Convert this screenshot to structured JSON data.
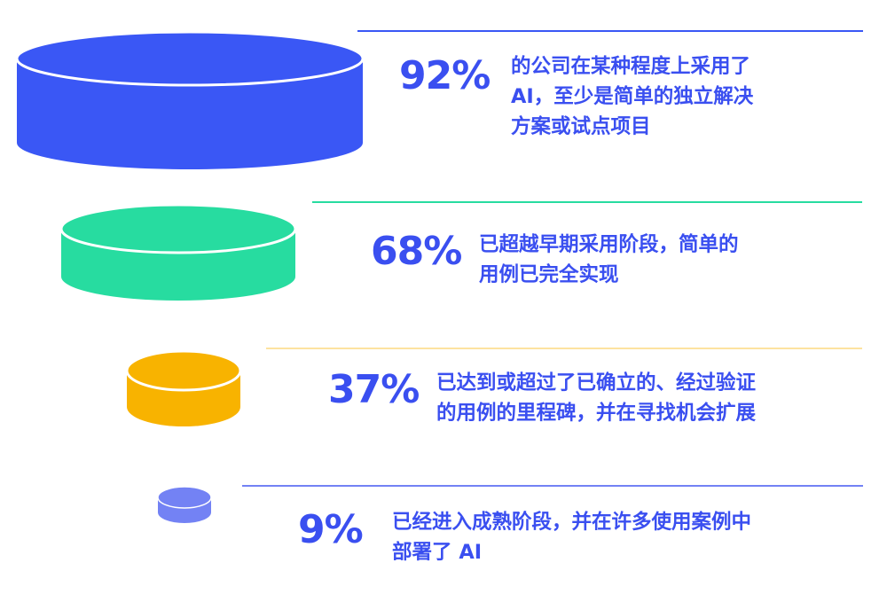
{
  "theme": {
    "text_color": "#3a4ff0",
    "colors": [
      "#3a57f5",
      "#27dca0",
      "#f8b300",
      "#7382f4"
    ],
    "rule_colors": [
      "#3a57f5",
      "#27dca0",
      "#fde3a0",
      "#7382f4"
    ]
  },
  "items": [
    {
      "value": "92%",
      "percent": 92,
      "lines": [
        "的公司在某种程度上采用了",
        "AI，至少是简单的独立解决",
        "方案或试点项目"
      ]
    },
    {
      "value": "68%",
      "percent": 68,
      "lines": [
        "已超越早期采用阶段，简单的",
        "用例已完全实现"
      ]
    },
    {
      "value": "37%",
      "percent": 37,
      "lines": [
        "已达到或超过了已确立的、经过验证",
        "的用例的里程碑，并在寻找机会扩展"
      ]
    },
    {
      "value": "9%",
      "percent": 9,
      "lines": [
        "已经进入成熟阶段，并在许多使用案例中",
        "部署了 AI"
      ]
    }
  ]
}
